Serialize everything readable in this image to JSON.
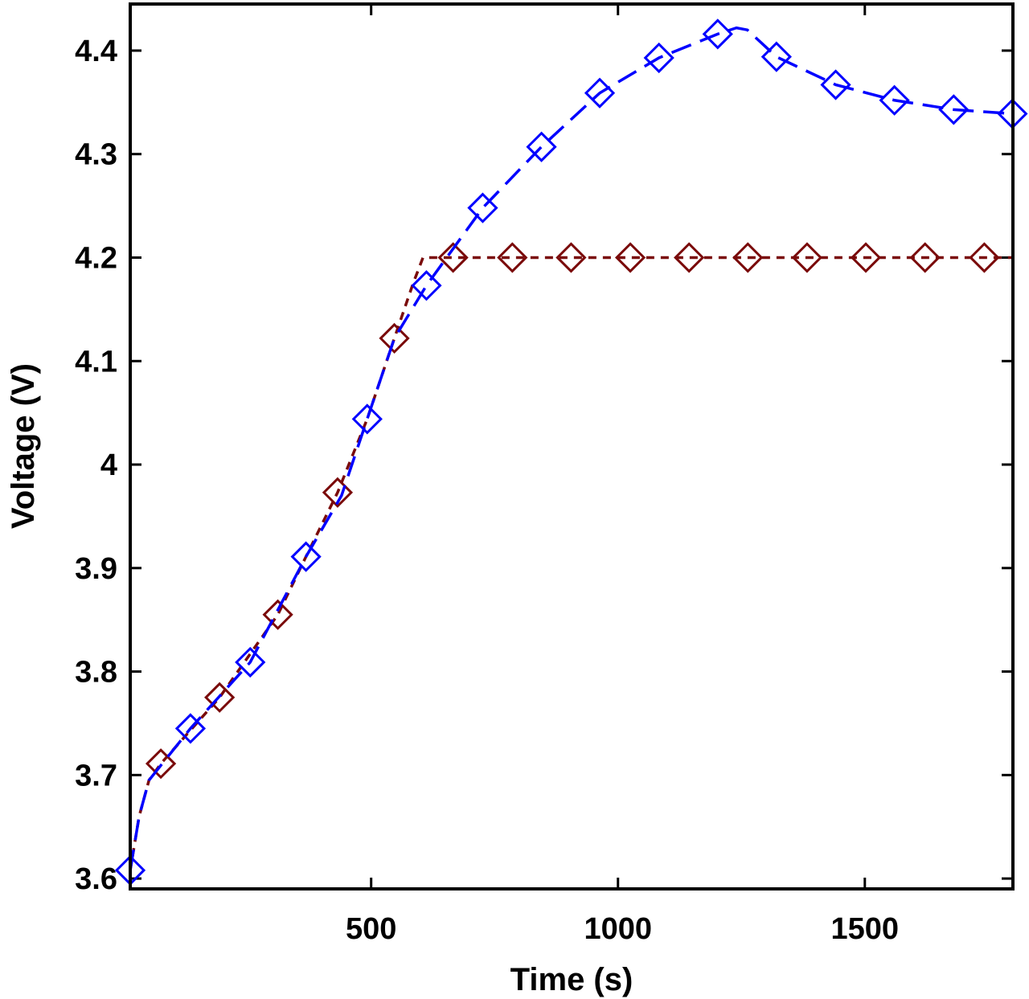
{
  "chart_data": {
    "type": "line",
    "title": "",
    "xlabel": "Time (s)",
    "ylabel": "Voltage (V)",
    "xlim": [
      12,
      1800
    ],
    "ylim": [
      3.59,
      4.445
    ],
    "xticks": [
      500,
      1000,
      1500
    ],
    "xtick_labels": [
      "500",
      "1000",
      "1500"
    ],
    "yticks": [
      3.6,
      3.7,
      3.8,
      3.9,
      4.0,
      4.1,
      4.2,
      4.3,
      4.4
    ],
    "ytick_labels": [
      "3.6",
      "3.7",
      "3.8",
      "3.9",
      "4",
      "4.1",
      "4.2",
      "4.3",
      "4.4"
    ],
    "grid": false,
    "series": [
      {
        "color": "#0000ff",
        "line_style": "long-dash",
        "marker": "diamond",
        "line": [
          [
            12,
            3.608
          ],
          [
            30,
            3.66
          ],
          [
            50,
            3.695
          ],
          [
            134,
            3.745
          ],
          [
            255,
            3.809
          ],
          [
            368,
            3.911
          ],
          [
            440,
            3.97
          ],
          [
            492,
            4.044
          ],
          [
            547,
            4.122
          ],
          [
            612,
            4.173
          ],
          [
            726,
            4.248
          ],
          [
            845,
            4.307
          ],
          [
            963,
            4.359
          ],
          [
            1083,
            4.393
          ],
          [
            1202,
            4.416
          ],
          [
            1240,
            4.422
          ],
          [
            1262,
            4.42
          ],
          [
            1321,
            4.394
          ],
          [
            1441,
            4.367
          ],
          [
            1560,
            4.352
          ],
          [
            1680,
            4.343
          ],
          [
            1799,
            4.339
          ]
        ],
        "markers": [
          [
            12,
            3.608
          ],
          [
            134,
            3.745
          ],
          [
            255,
            3.809
          ],
          [
            368,
            3.911
          ],
          [
            492,
            4.044
          ],
          [
            612,
            4.173
          ],
          [
            726,
            4.248
          ],
          [
            845,
            4.307
          ],
          [
            963,
            4.359
          ],
          [
            1083,
            4.393
          ],
          [
            1202,
            4.416
          ],
          [
            1321,
            4.394
          ],
          [
            1441,
            4.367
          ],
          [
            1560,
            4.352
          ],
          [
            1680,
            4.343
          ],
          [
            1799,
            4.339
          ]
        ]
      },
      {
        "color": "#7a0a0a",
        "line_style": "short-dash",
        "marker": "diamond",
        "line": [
          [
            12,
            3.608
          ],
          [
            30,
            3.66
          ],
          [
            50,
            3.695
          ],
          [
            74,
            3.711
          ],
          [
            193,
            3.775
          ],
          [
            311,
            3.855
          ],
          [
            368,
            3.911
          ],
          [
            432,
            3.973
          ],
          [
            492,
            4.044
          ],
          [
            547,
            4.122
          ],
          [
            585,
            4.175
          ],
          [
            605,
            4.2
          ],
          [
            1800,
            4.2
          ]
        ],
        "markers": [
          [
            74,
            3.711
          ],
          [
            193,
            3.775
          ],
          [
            311,
            3.855
          ],
          [
            432,
            3.973
          ],
          [
            547,
            4.122
          ],
          [
            666,
            4.2
          ],
          [
            786,
            4.2
          ],
          [
            905,
            4.2
          ],
          [
            1025,
            4.2
          ],
          [
            1144,
            4.2
          ],
          [
            1263,
            4.2
          ],
          [
            1383,
            4.2
          ],
          [
            1502,
            4.2
          ],
          [
            1622,
            4.2
          ],
          [
            1742,
            4.2
          ]
        ]
      }
    ]
  }
}
